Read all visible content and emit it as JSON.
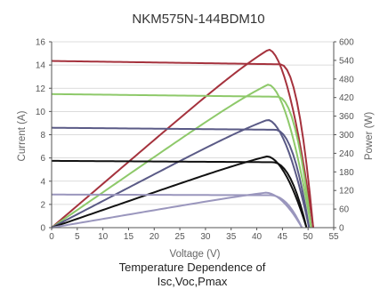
{
  "chart_data": {
    "type": "line",
    "title": "NKM575N-144BDM10",
    "caption_lines": [
      "Temperature Dependence of",
      "Isc,Voc,Pmax"
    ],
    "xlabel": "Voltage (V)",
    "ylabel_left": "Current (A)",
    "ylabel_right": "Power (W)",
    "xlim": [
      0,
      55
    ],
    "ylim_left": [
      0,
      16
    ],
    "ylim_right": [
      0,
      600
    ],
    "x_ticks": [
      "0",
      "5",
      "10",
      "15",
      "20",
      "25",
      "30",
      "35",
      "40",
      "45",
      "50",
      "55"
    ],
    "y_left_ticks": [
      "0",
      "2",
      "4",
      "6",
      "8",
      "10",
      "12",
      "14",
      "16"
    ],
    "y_right_ticks": [
      "0",
      "60",
      "120",
      "180",
      "240",
      "300",
      "360",
      "420",
      "480",
      "540",
      "600"
    ],
    "grid": "horizontal",
    "iv_series": [
      {
        "color": "#a5323d",
        "isc": 14.35,
        "voc": 51.0,
        "knee": 44.5
      },
      {
        "color": "#8ec96a",
        "isc": 11.5,
        "voc": 50.6,
        "knee": 44.0
      },
      {
        "color": "#5a5a86",
        "isc": 8.6,
        "voc": 50.2,
        "knee": 43.5
      },
      {
        "color": "#111111",
        "isc": 5.75,
        "voc": 49.7,
        "knee": 43.0
      },
      {
        "color": "#9a96bd",
        "isc": 2.85,
        "voc": 48.8,
        "knee": 42.5
      }
    ],
    "pv_series": [
      {
        "color": "#a5323d",
        "pmax": 575,
        "vmp": 42.3,
        "voc": 51.0
      },
      {
        "color": "#8ec96a",
        "pmax": 462,
        "vmp": 42.2,
        "voc": 50.6
      },
      {
        "color": "#5a5a86",
        "pmax": 348,
        "vmp": 42.1,
        "voc": 50.2
      },
      {
        "color": "#111111",
        "pmax": 230,
        "vmp": 42.0,
        "voc": 49.7
      },
      {
        "color": "#9a96bd",
        "pmax": 113,
        "vmp": 41.8,
        "voc": 48.8
      }
    ]
  }
}
